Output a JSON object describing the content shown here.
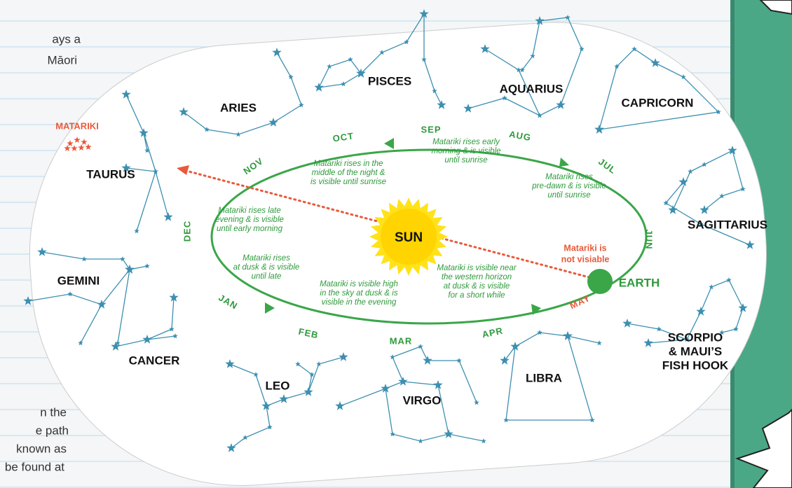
{
  "background_text": [
    "ays a",
    "Māori",
    "n the",
    "e path",
    "known as",
    "be found at"
  ],
  "sun_label": "SUN",
  "earth_label": "EARTH",
  "matariki_label": "MATARIKI",
  "not_visible_label": [
    "Matariki is",
    "not visiable"
  ],
  "months": [
    "OCT",
    "SEP",
    "AUG",
    "JUL",
    "JUN",
    "MAY",
    "APR",
    "MAR",
    "FEB",
    "JAN",
    "DEC",
    "NOV"
  ],
  "descriptions": [
    [
      "Matariki rises in the",
      "middle of the night &",
      "is visible until sunrise"
    ],
    [
      "Matariki rises early",
      "morning & is visible",
      "until sunrise"
    ],
    [
      "Matariki rises",
      "pre-dawn & is visible",
      "until sunrise"
    ],
    [
      "Matariki rises late",
      "evening & is visible",
      "until early morning"
    ],
    [
      "Matariki rises",
      "at dusk & is visible",
      "until late"
    ],
    [
      "Matariki is visible high",
      "in the sky at dusk & is",
      "visible in the evening"
    ],
    [
      "Matariki is visible near",
      "the western horizon",
      "at dusk & is visible",
      "for a short while"
    ]
  ],
  "constellations": [
    [
      "ARIES"
    ],
    [
      "PISCES"
    ],
    [
      "AQUARIUS"
    ],
    [
      "CAPRICORN"
    ],
    [
      "TAURUS"
    ],
    [
      "SAGITTARIUS"
    ],
    [
      "GEMINI"
    ],
    [
      "CANCER"
    ],
    [
      "LEO"
    ],
    [
      "VIRGO"
    ],
    [
      "LIBRA"
    ],
    [
      "SCORPIO",
      "& MAUI’S",
      "FISH HOOK"
    ]
  ]
}
